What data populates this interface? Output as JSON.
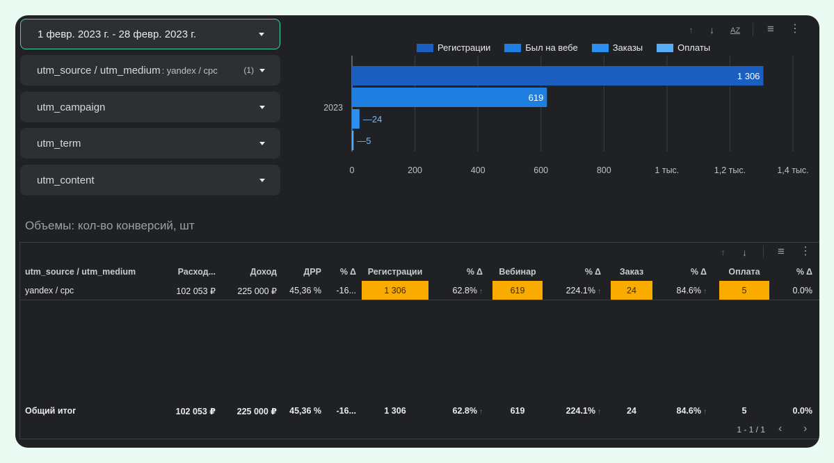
{
  "filters": [
    {
      "label": "1 февр. 2023 г. - 28 февр. 2023 г.",
      "value": "",
      "count": ""
    },
    {
      "label": "utm_source / utm_medium",
      "value": ": yandex / cpc",
      "count": "(1)"
    },
    {
      "label": "utm_campaign",
      "value": "",
      "count": ""
    },
    {
      "label": "utm_term",
      "value": "",
      "count": ""
    },
    {
      "label": "utm_content",
      "value": "",
      "count": ""
    }
  ],
  "chart_data": {
    "type": "bar",
    "orientation": "horizontal",
    "categories": [
      "2023"
    ],
    "series": [
      {
        "name": "Регистрации",
        "values": [
          1306
        ],
        "color": "#1a5fc0",
        "label": "1 306"
      },
      {
        "name": "Был на вебе",
        "values": [
          619
        ],
        "color": "#1e7fe0",
        "label": "619"
      },
      {
        "name": "Заказы",
        "values": [
          24
        ],
        "color": "#2b8ff0",
        "label": "24"
      },
      {
        "name": "Оплаты",
        "values": [
          5
        ],
        "color": "#5aaef5",
        "label": "5"
      }
    ],
    "xlim": [
      0,
      1400
    ],
    "xticks": [
      {
        "value": 0,
        "label": "0"
      },
      {
        "value": 200,
        "label": "200"
      },
      {
        "value": 400,
        "label": "400"
      },
      {
        "value": 600,
        "label": "600"
      },
      {
        "value": 800,
        "label": "800"
      },
      {
        "value": 1000,
        "label": "1 тыс."
      },
      {
        "value": 1200,
        "label": "1,2 тыс."
      },
      {
        "value": 1400,
        "label": "1,4 тыс."
      }
    ],
    "grid": true,
    "legend_position": "top"
  },
  "section_title": "Объемы: кол-во конверсий, шт",
  "table": {
    "headers": [
      "utm_source / utm_medium",
      "Расход...",
      "Доход",
      "ДРР",
      "% Δ",
      "Регистрации",
      "% Δ",
      "Вебинар",
      "% Δ",
      "Заказ",
      "% Δ",
      "Оплата",
      "% Δ"
    ],
    "row": [
      "yandex / cpc",
      "102 053 ₽",
      "225 000 ₽",
      "45,36 %",
      "-16...",
      "1 306",
      "62.8%",
      "619",
      "224.1%",
      "24",
      "84.6%",
      "5",
      "0.0%"
    ],
    "total": [
      "Общий итог",
      "102 053 ₽",
      "225 000 ₽",
      "45,36 %",
      "-16...",
      "1 306",
      "62.8%",
      "619",
      "224.1%",
      "24",
      "84.6%",
      "5",
      "0.0%"
    ],
    "up_arrow": "↑",
    "highlight_color": "#f9ab00"
  },
  "pagination": "1 - 1 / 1",
  "icons": {
    "sort_up": "↑",
    "sort_down": "↓",
    "sort_az": "AZ",
    "filter": "≡",
    "more": "⋮",
    "prev": "‹",
    "next": "›"
  }
}
